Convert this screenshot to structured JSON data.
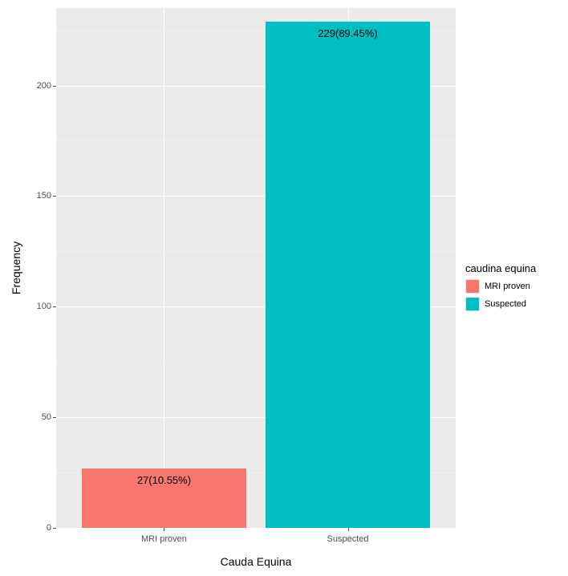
{
  "chart": {
    "type": "bar",
    "xlabel": "Cauda Equina",
    "ylabel": "Frequency",
    "legend_title": "caudina equina",
    "panel_background": "#ebebeb",
    "grid_major_color": "#ffffff",
    "grid_minor_color": "#f5f5f5",
    "tick_text_color": "#4d4d4d",
    "axis_label_color": "#000000",
    "ylim": [
      0,
      235
    ],
    "y_major_ticks": [
      0,
      50,
      100,
      150,
      200
    ],
    "y_minor_ticks": [
      25,
      75,
      125,
      175,
      225
    ],
    "categories": [
      "MRI proven",
      "Suspected"
    ],
    "x_positions_pct": [
      27,
      73
    ],
    "values": [
      27,
      229
    ],
    "bar_labels": [
      "27(10.55%)",
      "229(89.45%)"
    ],
    "bar_colors": [
      "#f8766d",
      "#00bfc4"
    ],
    "bar_width_pct": 41,
    "label_fontsize": 13,
    "tick_fontsize": 11,
    "axis_title_fontsize": 14,
    "legend": [
      {
        "label": "MRI proven",
        "color": "#f8766d"
      },
      {
        "label": "Suspected",
        "color": "#00bfc4"
      }
    ]
  }
}
